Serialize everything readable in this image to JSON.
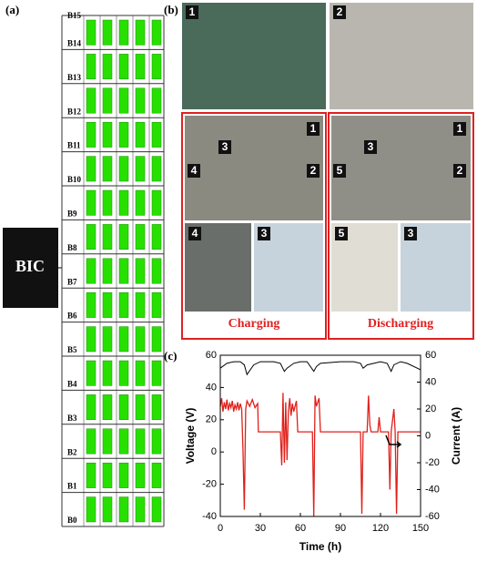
{
  "panel_a": {
    "label": "(a)",
    "controller": "BIC",
    "modules": [
      "B15",
      "B14",
      "B13",
      "B12",
      "B11",
      "B10",
      "B9",
      "B8",
      "B7",
      "B6",
      "B5",
      "B4",
      "B3",
      "B2",
      "B1",
      "B0"
    ]
  },
  "panel_b": {
    "label": "(b)",
    "badges": [
      "1",
      "2",
      "1",
      "3",
      "2",
      "4",
      "4",
      "3",
      "1",
      "3",
      "2",
      "5",
      "5",
      "3"
    ],
    "captions": [
      "Charging",
      "Discharging"
    ]
  },
  "chart_data": {
    "type": "line",
    "label": "(c)",
    "x_label": "Time (h)",
    "y_label": "Voltage (V)",
    "y2_label": "Current (A)",
    "xlim": [
      0,
      150
    ],
    "xticks": [
      0,
      30,
      60,
      90,
      120,
      150
    ],
    "ylim": [
      -40,
      60
    ],
    "yticks": [
      -40,
      -20,
      0,
      20,
      40,
      60
    ],
    "y2lim": [
      -60,
      60
    ],
    "y2ticks": [
      -60,
      -40,
      -20,
      0,
      20,
      40,
      60
    ],
    "series": [
      {
        "name": "Voltage",
        "color": "#000000",
        "x": [
          0,
          5,
          10,
          15,
          18,
          20,
          25,
          30,
          40,
          45,
          48,
          50,
          55,
          60,
          65,
          70,
          72,
          75,
          90,
          100,
          105,
          107,
          110,
          120,
          125,
          128,
          130,
          135,
          140,
          150
        ],
        "values": [
          52,
          55,
          56,
          56,
          54,
          48,
          54,
          56,
          56,
          55,
          50,
          52,
          55,
          56,
          56,
          50,
          53,
          55,
          56,
          56,
          55,
          52,
          54,
          56,
          55,
          50,
          54,
          56,
          55,
          51
        ]
      },
      {
        "name": "Current",
        "color": "#e0201a",
        "axis": "y2",
        "x": [
          0,
          1,
          2,
          3,
          4,
          5,
          6,
          7,
          8,
          9,
          10,
          11,
          12,
          13,
          14,
          15,
          16,
          17,
          18,
          19,
          20,
          22,
          24,
          26,
          28,
          28.5,
          45,
          46,
          47,
          48,
          49,
          50,
          51,
          52,
          53,
          54,
          55,
          56,
          57,
          58,
          69,
          70,
          71,
          72,
          74,
          75,
          105,
          106,
          107,
          110,
          111,
          112,
          113,
          118,
          119,
          120,
          121,
          126,
          127,
          128,
          130,
          131,
          132,
          133,
          150
        ],
        "values": [
          22,
          28,
          18,
          25,
          20,
          27,
          19,
          24,
          21,
          26,
          18,
          23,
          20,
          25,
          19,
          24,
          20,
          -10,
          -55,
          20,
          26,
          22,
          27,
          21,
          24,
          3,
          3,
          -22,
          32,
          -20,
          25,
          -18,
          18,
          28,
          15,
          24,
          18,
          22,
          26,
          3,
          3,
          -60,
          30,
          22,
          28,
          3,
          3,
          -58,
          3,
          3,
          30,
          8,
          3,
          3,
          14,
          3,
          3,
          3,
          -40,
          3,
          20,
          3,
          -58,
          3,
          3
        ]
      }
    ]
  }
}
